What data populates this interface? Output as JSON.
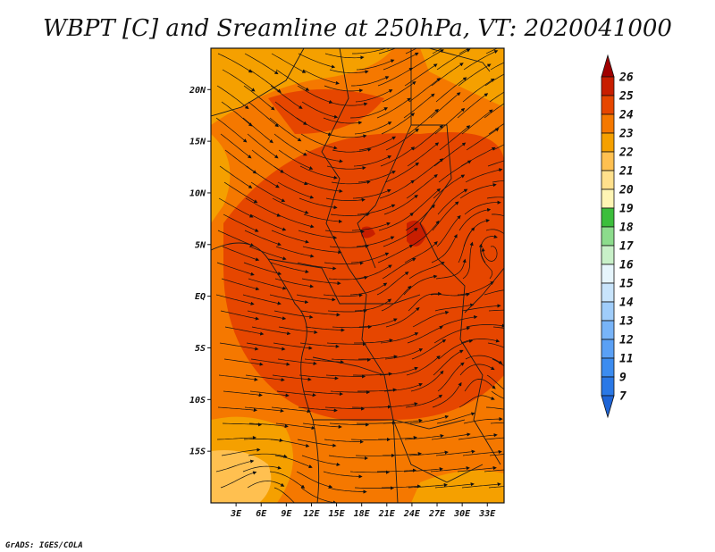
{
  "chart_data": {
    "type": "heatmap",
    "title": "WBPT [C] and Sreamline at 250hPa, VT: 2020041000",
    "variable": "WBPT [C] and Sreamline",
    "level": "250hPa",
    "valid_time": "2020041000",
    "xlabel": "",
    "ylabel": "",
    "x_range": [
      0,
      35
    ],
    "y_range": [
      -20,
      24
    ],
    "x_ticks": [
      3,
      6,
      9,
      12,
      15,
      18,
      21,
      24,
      27,
      30,
      33
    ],
    "x_tick_labels": [
      "3E",
      "6E",
      "9E",
      "12E",
      "15E",
      "18E",
      "21E",
      "24E",
      "27E",
      "30E",
      "33E"
    ],
    "y_ticks": [
      20,
      15,
      10,
      5,
      0,
      -5,
      -10,
      -15
    ],
    "y_tick_labels": [
      "20N",
      "15N",
      "10N",
      "5N",
      "EQ",
      "5S",
      "10S",
      "15S"
    ],
    "colorbar": {
      "levels": [
        7,
        9,
        11,
        12,
        13,
        14,
        15,
        16,
        17,
        18,
        19,
        20,
        21,
        22,
        23,
        24,
        25,
        26
      ],
      "labels": [
        "7",
        "9",
        "11",
        "12",
        "13",
        "14",
        "15",
        "16",
        "17",
        "18",
        "19",
        "20",
        "21",
        "22",
        "23",
        "24",
        "25",
        "26"
      ],
      "colors": [
        "#1e64d6",
        "#2a78e6",
        "#3c8cf0",
        "#5aa0f5",
        "#78b4f8",
        "#a0cdfa",
        "#c8e4fb",
        "#e6f5fc",
        "#c8f0c8",
        "#8cdc8c",
        "#3cbe3c",
        "#fff5b4",
        "#ffe08c",
        "#ffc050",
        "#f5a000",
        "#f57800",
        "#e64600",
        "#c81e00",
        "#a00000"
      ]
    }
  },
  "credit": "GrADS: IGES/COLA",
  "map": {
    "field_colors": {
      "c21": "#ffc050",
      "c22": "#f5a000",
      "c23": "#f57800",
      "c24": "#e64600",
      "c25": "#c81e00"
    },
    "border_color": "#1a1a1a",
    "streamline_color": "#111111"
  }
}
